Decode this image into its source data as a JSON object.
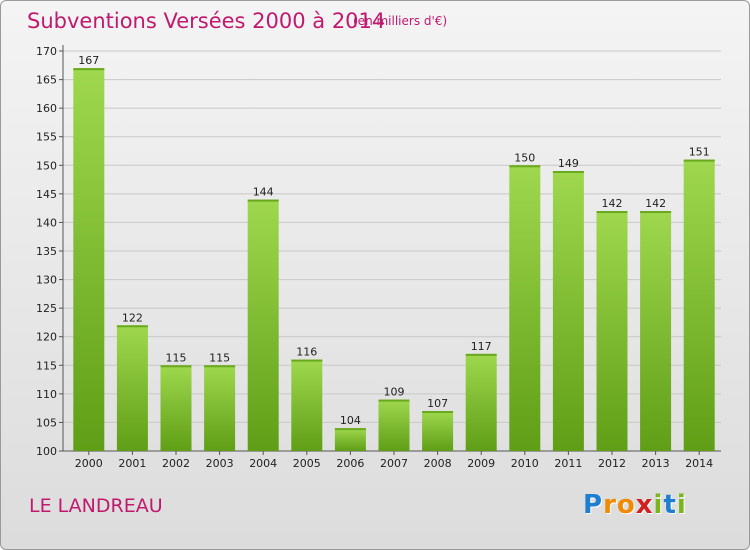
{
  "title": "Subventions Versées 2000 à 2014",
  "subtitle": "(en milliers d'€)",
  "commune": "LE LANDREAU",
  "logo": {
    "text": "Proxiti",
    "letters": [
      "P",
      "r",
      "o",
      "x",
      "i",
      "t",
      "i"
    ],
    "colors": [
      "#1e7fd0",
      "#f08a00",
      "#f08a00",
      "#d02020",
      "#7ab51d",
      "#1e7fd0",
      "#7ab51d"
    ]
  },
  "colors": {
    "title": "#c0196e",
    "bar_light": "#9fd84e",
    "bar_dark": "#5f9e16",
    "grid": "#c8c8c8"
  },
  "chart_data": {
    "type": "bar",
    "categories": [
      "2000",
      "2001",
      "2002",
      "2003",
      "2004",
      "2005",
      "2006",
      "2007",
      "2008",
      "2009",
      "2010",
      "2011",
      "2012",
      "2013",
      "2014"
    ],
    "values": [
      167,
      122,
      115,
      115,
      144,
      116,
      104,
      109,
      107,
      117,
      150,
      149,
      142,
      142,
      151
    ],
    "title": "Subventions Versées 2000 à 2014",
    "ylim": [
      100,
      170
    ],
    "yticks": [
      100,
      105,
      110,
      115,
      120,
      125,
      130,
      135,
      140,
      145,
      150,
      155,
      160,
      165,
      170
    ],
    "grid": true,
    "legend": "none"
  }
}
